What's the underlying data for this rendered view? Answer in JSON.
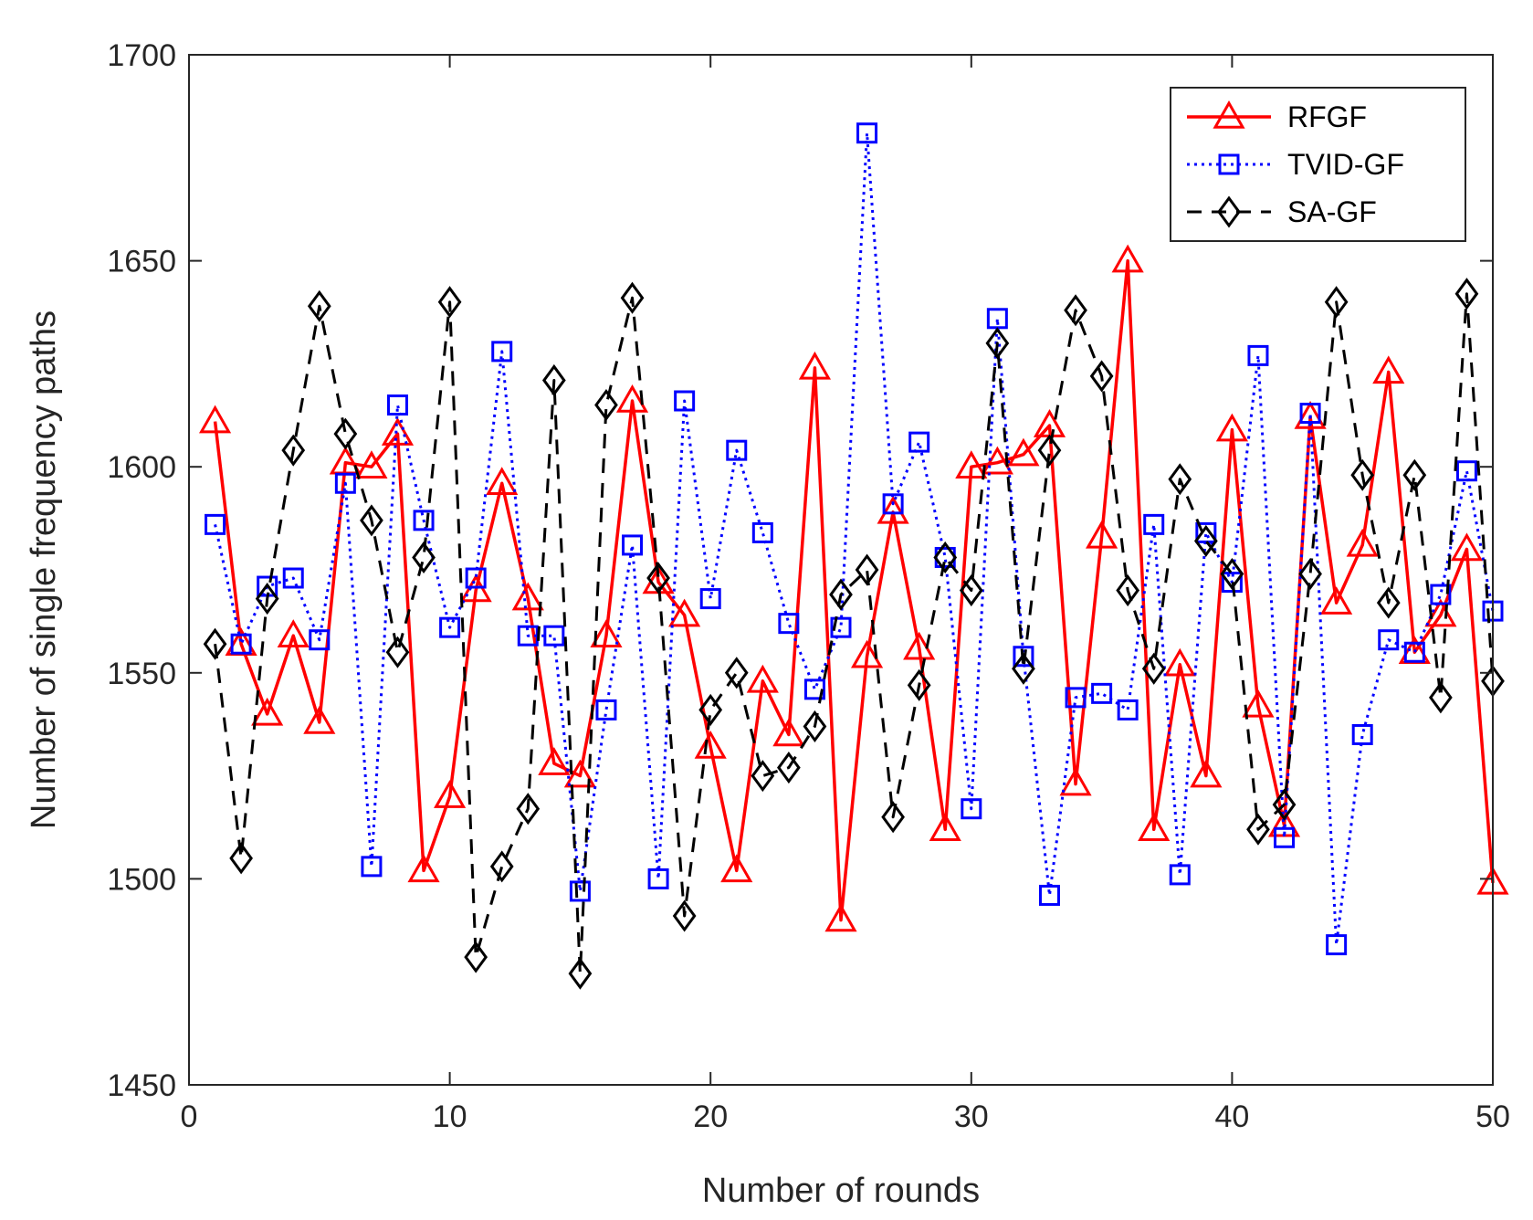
{
  "chart_data": {
    "type": "line",
    "title": "",
    "xlabel": "Number of rounds",
    "ylabel": "Number of single frequency paths",
    "xlim": [
      0,
      50
    ],
    "ylim": [
      1450,
      1700
    ],
    "xticks": [
      0,
      10,
      20,
      30,
      40,
      50
    ],
    "yticks": [
      1450,
      1500,
      1550,
      1600,
      1650,
      1700
    ],
    "grid": false,
    "legend_position": "top-right",
    "x": [
      1,
      2,
      3,
      4,
      5,
      6,
      7,
      8,
      9,
      10,
      11,
      12,
      13,
      14,
      15,
      16,
      17,
      18,
      19,
      20,
      21,
      22,
      23,
      24,
      25,
      26,
      27,
      28,
      29,
      30,
      31,
      32,
      33,
      34,
      35,
      36,
      37,
      38,
      39,
      40,
      41,
      42,
      43,
      44,
      45,
      46,
      47,
      48,
      49,
      50
    ],
    "series": [
      {
        "name": "RFGF",
        "color": "#ff0000",
        "line": "solid",
        "marker": "triangle",
        "values": [
          1611,
          1557,
          1540,
          1559,
          1538,
          1601,
          1600,
          1608,
          1502,
          1520,
          1570,
          1596,
          1568,
          1528,
          1525,
          1559,
          1616,
          1572,
          1564,
          1532,
          1502,
          1548,
          1535,
          1624,
          1490,
          1554,
          1589,
          1556,
          1512,
          1600,
          1601,
          1603,
          1610,
          1523,
          1583,
          1650,
          1512,
          1552,
          1525,
          1609,
          1542,
          1513,
          1612,
          1567,
          1581,
          1623,
          1555,
          1564,
          1580,
          1499
        ]
      },
      {
        "name": "TVID-GF",
        "color": "#0000ff",
        "line": "dotted",
        "marker": "square",
        "values": [
          1586,
          1557,
          1571,
          1573,
          1558,
          1596,
          1503,
          1615,
          1587,
          1561,
          1573,
          1628,
          1559,
          1559,
          1497,
          1541,
          1581,
          1500,
          1616,
          1568,
          1604,
          1584,
          1562,
          1546,
          1561,
          1681,
          1591,
          1606,
          1578,
          1517,
          1636,
          1554,
          1496,
          1544,
          1545,
          1541,
          1586,
          1501,
          1584,
          1572,
          1627,
          1510,
          1613,
          1484,
          1535,
          1558,
          1555,
          1569,
          1599,
          1565
        ]
      },
      {
        "name": "SA-GF",
        "color": "#000000",
        "line": "dashed",
        "marker": "diamond",
        "values": [
          1557,
          1505,
          1568,
          1604,
          1639,
          1608,
          1587,
          1555,
          1578,
          1640,
          1481,
          1503,
          1517,
          1621,
          1477,
          1615,
          1641,
          1573,
          1491,
          1541,
          1550,
          1525,
          1527,
          1537,
          1569,
          1575,
          1515,
          1547,
          1578,
          1570,
          1630,
          1551,
          1604,
          1638,
          1622,
          1570,
          1551,
          1597,
          1582,
          1574,
          1512,
          1518,
          1574,
          1640,
          1598,
          1567,
          1598,
          1544,
          1642,
          1548
        ]
      }
    ]
  }
}
